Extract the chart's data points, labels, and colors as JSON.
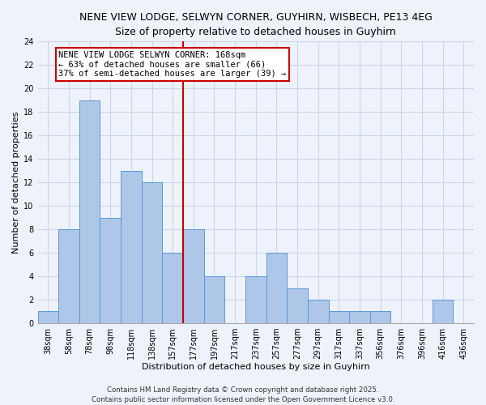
{
  "title1": "NENE VIEW LODGE, SELWYN CORNER, GUYHIRN, WISBECH, PE13 4EG",
  "title2": "Size of property relative to detached houses in Guyhirn",
  "xlabel": "Distribution of detached houses by size in Guyhirn",
  "ylabel": "Number of detached properties",
  "bin_labels": [
    "38sqm",
    "58sqm",
    "78sqm",
    "98sqm",
    "118sqm",
    "138sqm",
    "157sqm",
    "177sqm",
    "197sqm",
    "217sqm",
    "237sqm",
    "257sqm",
    "277sqm",
    "297sqm",
    "317sqm",
    "337sqm",
    "356sqm",
    "376sqm",
    "396sqm",
    "416sqm",
    "436sqm"
  ],
  "counts": [
    1,
    8,
    19,
    9,
    13,
    12,
    6,
    8,
    4,
    0,
    4,
    6,
    3,
    2,
    1,
    1,
    1,
    0,
    0,
    2,
    0
  ],
  "bar_color": "#aec6e8",
  "bar_edge_color": "#5b9bd5",
  "marker_bin_index": 7,
  "marker_color": "#cc0000",
  "ylim": [
    0,
    24
  ],
  "yticks": [
    0,
    2,
    4,
    6,
    8,
    10,
    12,
    14,
    16,
    18,
    20,
    22,
    24
  ],
  "annotation_line1": "NENE VIEW LODGE SELWYN CORNER: 168sqm",
  "annotation_line2": "← 63% of detached houses are smaller (66)",
  "annotation_line3": "37% of semi-detached houses are larger (39) →",
  "footer1": "Contains HM Land Registry data © Crown copyright and database right 2025.",
  "footer2": "Contains public sector information licensed under the Open Government Licence v3.0.",
  "background_color": "#eef2fb",
  "grid_color": "#ccd4e8",
  "title_fontsize": 9.0,
  "title2_fontsize": 8.5,
  "axis_label_fontsize": 8.0,
  "tick_fontsize": 7.0,
  "annotation_fontsize": 7.5,
  "footer_fontsize": 6.2
}
